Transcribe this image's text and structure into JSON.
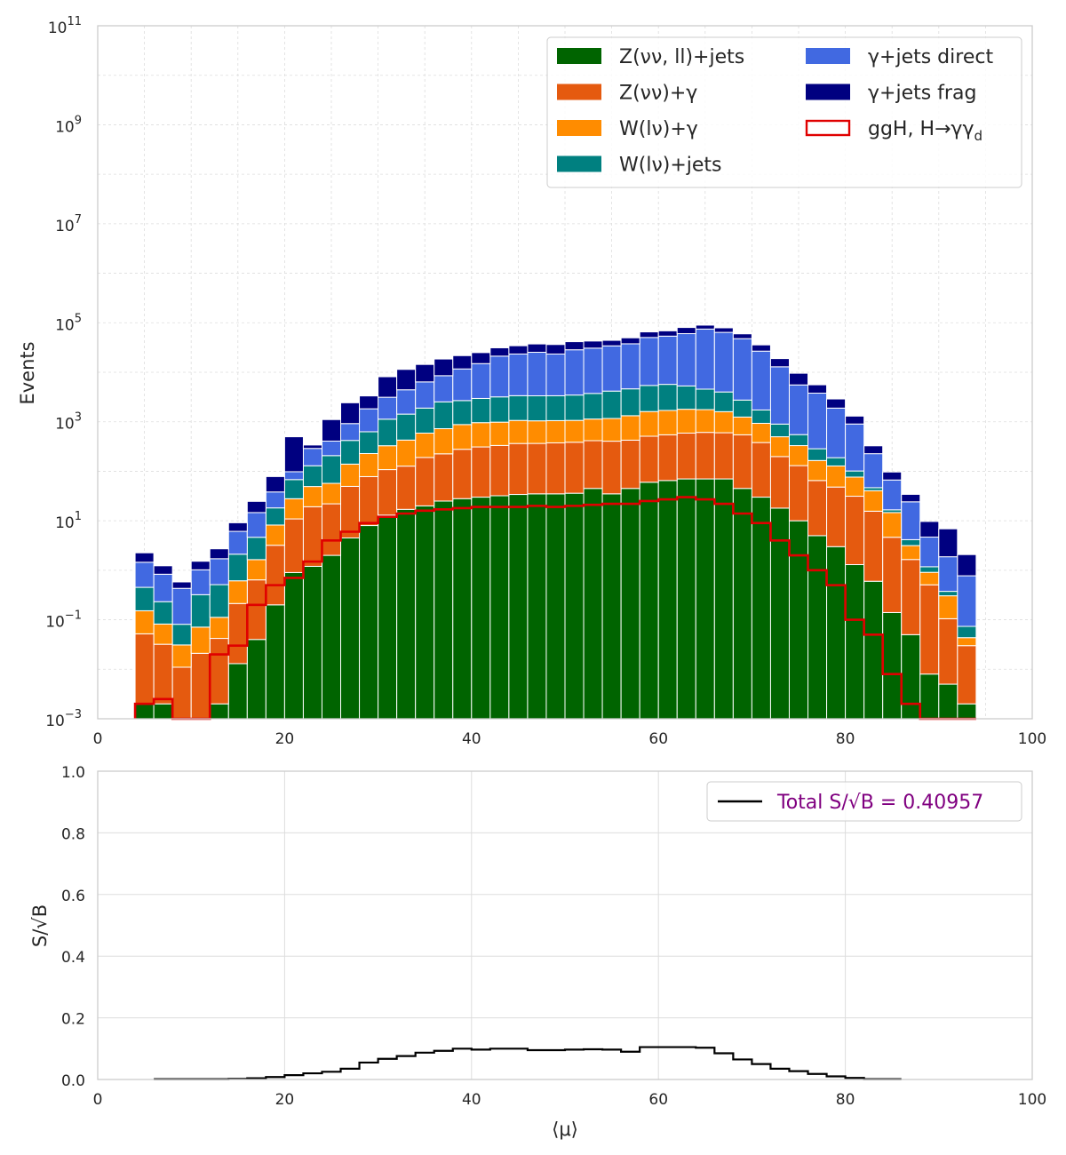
{
  "chart_data": [
    {
      "type": "bar",
      "stacked": true,
      "log_y": true,
      "ylabel": "Events",
      "xlabel": "",
      "xlim": [
        0,
        100
      ],
      "ylim": [
        0.001,
        100000000000
      ],
      "grid": true,
      "legend_position": "top-right",
      "x_ticks": [
        "0",
        "20",
        "40",
        "60",
        "80",
        "100"
      ],
      "y_ticks": [
        {
          "base": "10",
          "exp": "−3"
        },
        {
          "base": "10",
          "exp": "−1"
        },
        {
          "base": "10",
          "exp": "1"
        },
        {
          "base": "10",
          "exp": "3"
        },
        {
          "base": "10",
          "exp": "5"
        },
        {
          "base": "10",
          "exp": "7"
        },
        {
          "base": "10",
          "exp": "9"
        },
        {
          "base": "10",
          "exp": "11"
        }
      ],
      "bin_edges_start": 4,
      "bin_width": 2,
      "series": [
        {
          "name": "Z(νν, ll)+jets",
          "color": "#006400",
          "values": [
            0.002,
            0.002,
            0.001,
            0.001,
            0.002,
            0.013,
            0.04,
            0.2,
            0.9,
            1.2,
            2,
            4.5,
            8,
            13,
            17,
            20,
            25,
            28,
            30,
            32,
            34,
            35,
            35,
            36,
            45,
            35,
            45,
            60,
            65,
            70,
            70,
            70,
            45,
            30,
            18,
            10,
            5,
            3,
            1.3,
            0.6,
            0.14,
            0.05,
            0.008,
            0.005,
            0.002
          ]
        },
        {
          "name": "Z(νν)+γ",
          "color": "#E55A0F",
          "values": [
            0.05,
            0.03,
            0.01,
            0.02,
            0.04,
            0.2,
            0.6,
            3,
            10,
            18,
            20,
            45,
            70,
            95,
            110,
            170,
            200,
            250,
            280,
            300,
            330,
            330,
            340,
            350,
            370,
            370,
            380,
            450,
            480,
            520,
            540,
            530,
            500,
            350,
            180,
            120,
            60,
            45,
            30,
            15,
            4.5,
            1.6,
            0.5,
            0.1,
            0.028
          ]
        },
        {
          "name": "W(lν)+γ",
          "color": "#FF8C00",
          "values": [
            0.1,
            0.05,
            0.02,
            0.05,
            0.07,
            0.4,
            1,
            5,
            17,
            30,
            35,
            90,
            150,
            220,
            300,
            400,
            500,
            600,
            650,
            650,
            700,
            680,
            680,
            680,
            720,
            760,
            900,
            1100,
            1150,
            1200,
            1150,
            1000,
            700,
            550,
            300,
            200,
            100,
            80,
            45,
            25,
            10,
            1.5,
            0.4,
            0.2,
            0.0135
          ]
        },
        {
          "name": "W(lν)+jets",
          "color": "#008080",
          "values": [
            0.3,
            0.15,
            0.05,
            0.25,
            0.4,
            1.5,
            3,
            10,
            40,
            80,
            150,
            280,
            400,
            800,
            1000,
            1300,
            1800,
            1800,
            2000,
            2200,
            2300,
            2300,
            2300,
            2400,
            2600,
            3000,
            3300,
            3800,
            4000,
            3500,
            2800,
            2400,
            1500,
            800,
            400,
            220,
            120,
            60,
            25,
            6,
            2,
            1,
            0.27,
            0.07,
            0.03
          ]
        },
        {
          "name": "γ+jets direct",
          "color": "#4169E1",
          "values": [
            1,
            0.6,
            0.35,
            0.7,
            1.2,
            4,
            10,
            20,
            30,
            160,
            200,
            500,
            1200,
            2000,
            3000,
            4500,
            6000,
            9000,
            12000,
            18000,
            20000,
            22000,
            20000,
            25000,
            27000,
            30000,
            33000,
            45000,
            48000,
            55000,
            70000,
            60000,
            45000,
            25000,
            12000,
            5000,
            3500,
            1700,
            800,
            180,
            50,
            20,
            3.5,
            1.5,
            0.7
          ]
        },
        {
          "name": "γ+jets frag",
          "color": "#000080",
          "values": [
            0.8,
            0.4,
            0.15,
            0.5,
            1,
            3,
            10,
            40,
            400,
            50,
            700,
            1500,
            1500,
            5000,
            7000,
            8000,
            10000,
            10000,
            10000,
            10000,
            11000,
            12000,
            13000,
            13000,
            12000,
            10000,
            12000,
            15000,
            15000,
            20000,
            15000,
            15000,
            12000,
            9000,
            6000,
            4000,
            1800,
            1000,
            400,
            100,
            30,
            10,
            5,
            5,
            1.3
          ]
        }
      ],
      "signal": {
        "name": "ggH, H→γγ",
        "name_sub": "d",
        "color": "#E00000",
        "values": [
          0.002,
          0.0025,
          0.001,
          0.001,
          0.02,
          0.03,
          0.2,
          0.5,
          0.7,
          1.5,
          4,
          6,
          9,
          12,
          14,
          16,
          17,
          18,
          19,
          19,
          19,
          20,
          19,
          20,
          21,
          22,
          22,
          25,
          27,
          30,
          27,
          22,
          14,
          9,
          4,
          2,
          1,
          0.5,
          0.1,
          0.05,
          0.008,
          0.002,
          0.001,
          0.001,
          0.001
        ]
      }
    },
    {
      "type": "line",
      "step": true,
      "ylabel": "S/√B",
      "xlabel": "⟨μ⟩",
      "xlim": [
        0,
        100
      ],
      "ylim": [
        0,
        1
      ],
      "grid": true,
      "legend_position": "top-right",
      "legend_label": "Total S/√B = 0.40957",
      "legend_color": "#800080",
      "line_color": "#000000",
      "x_ticks": [
        "0",
        "20",
        "40",
        "60",
        "80",
        "100"
      ],
      "y_ticks": [
        "0.0",
        "0.2",
        "0.4",
        "0.6",
        "0.8",
        "1.0"
      ],
      "bin_edges_start": 6,
      "bin_width": 2,
      "values": [
        0.001,
        0.001,
        0.001,
        0.001,
        0.002,
        0.004,
        0.008,
        0.014,
        0.02,
        0.025,
        0.035,
        0.055,
        0.067,
        0.076,
        0.087,
        0.093,
        0.1,
        0.097,
        0.1,
        0.1,
        0.095,
        0.095,
        0.097,
        0.098,
        0.097,
        0.09,
        0.105,
        0.105,
        0.105,
        0.103,
        0.085,
        0.065,
        0.05,
        0.035,
        0.027,
        0.018,
        0.01,
        0.005,
        0.001,
        0.001
      ]
    }
  ]
}
